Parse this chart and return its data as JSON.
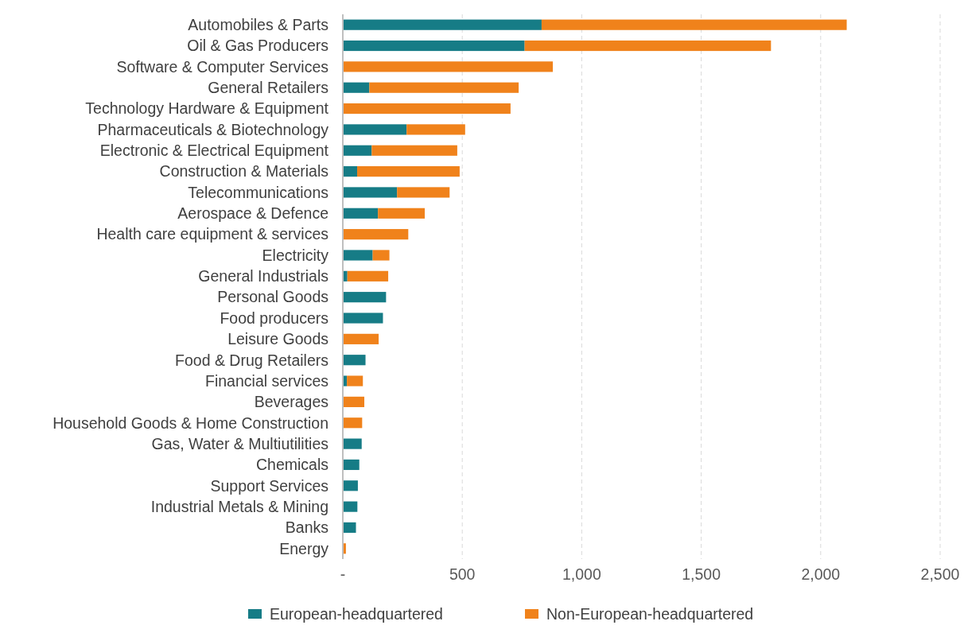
{
  "chart_data": {
    "type": "bar",
    "orientation": "horizontal",
    "stacked": true,
    "categories": [
      "Automobiles & Parts",
      "Oil & Gas Producers",
      "Software & Computer Services",
      "General Retailers",
      "Technology Hardware & Equipment",
      "Pharmaceuticals & Biotechnology",
      "Electronic & Electrical Equipment",
      "Construction & Materials",
      "Telecommunications",
      "Aerospace & Defence",
      "Health care equipment & services",
      "Electricity",
      "General Industrials",
      "Personal Goods",
      "Food producers",
      "Leisure Goods",
      "Food & Drug Retailers",
      "Financial services",
      "Beverages",
      "Household Goods & Home Construction",
      "Gas, Water & Multiutilities",
      "Chemicals",
      "Support Services",
      "Industrial Metals & Mining",
      "Banks",
      "Energy"
    ],
    "series": [
      {
        "name": "European-headquartered",
        "color": "#167c86",
        "values": [
          832,
          761,
          0,
          111,
          0,
          267,
          121,
          60,
          227,
          147,
          0,
          125,
          19,
          181,
          168,
          0,
          95,
          17,
          0,
          0,
          79,
          69,
          63,
          61,
          55,
          0
        ]
      },
      {
        "name": "Non-European-headquartered",
        "color": "#f0821b",
        "values": [
          1277,
          1031,
          879,
          625,
          702,
          245,
          358,
          429,
          220,
          196,
          274,
          70,
          171,
          0,
          0,
          150,
          0,
          67,
          90,
          81,
          0,
          0,
          0,
          0,
          0,
          13
        ]
      }
    ],
    "xlim": [
      0,
      2500
    ],
    "xticks": [
      {
        "value": 0,
        "label": "-"
      },
      {
        "value": 500,
        "label": "500"
      },
      {
        "value": 1000,
        "label": "1,000"
      },
      {
        "value": 1500,
        "label": "1,500"
      },
      {
        "value": 2000,
        "label": "2,000"
      },
      {
        "value": 2500,
        "label": "2,500"
      }
    ],
    "grid": "x",
    "legend": "bottom"
  }
}
